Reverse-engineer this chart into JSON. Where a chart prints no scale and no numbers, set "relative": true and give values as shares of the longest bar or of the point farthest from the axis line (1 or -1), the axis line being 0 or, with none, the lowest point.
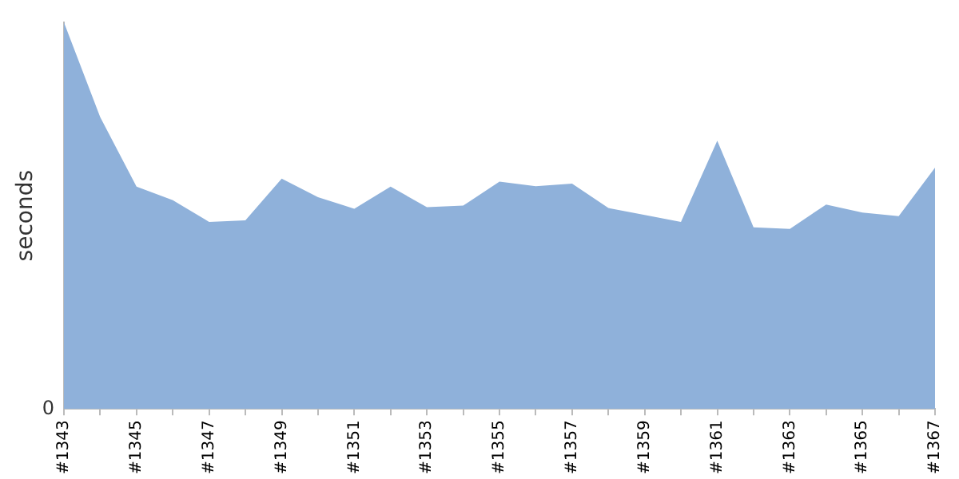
{
  "chart_data": {
    "type": "area",
    "ylabel": "seconds",
    "relative": true,
    "color": "#8fb1da",
    "grid": false,
    "legend": false,
    "categories": [
      "#1343",
      null,
      "#1345",
      null,
      "#1347",
      null,
      "#1349",
      null,
      "#1351",
      null,
      "#1353",
      null,
      "#1355",
      null,
      "#1357",
      null,
      "#1359",
      null,
      "#1361",
      null,
      "#1363",
      null,
      "#1365",
      null,
      "#1367"
    ],
    "values": [
      1,
      0.755,
      0.575,
      0.54,
      0.484,
      0.488,
      0.596,
      0.548,
      0.518,
      0.575,
      0.522,
      0.526,
      0.588,
      0.576,
      0.583,
      0.52,
      0.502,
      0.484,
      0.694,
      0.47,
      0.466,
      0.529,
      0.508,
      0.499,
      0.624
    ],
    "annotations": [
      "0"
    ]
  }
}
